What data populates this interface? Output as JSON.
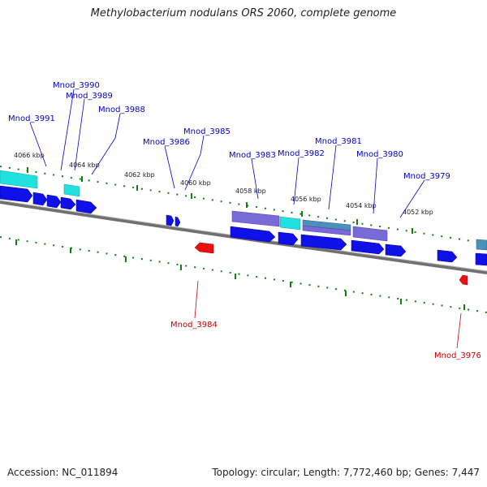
{
  "title": "Methylobacterium nodulans ORS 2060, complete genome",
  "accession": "Accession: NC_011894",
  "summary": "Topology: circular; Length: 7,772,460 bp; Genes: 7,447",
  "colors": {
    "forward_gene": "#1010e8",
    "reverse_gene": "#e81010",
    "cyan_feature": "#20e0e0",
    "purple_feature": "#7a6ad8",
    "teal_feature": "#4a90b8",
    "backbone": "#808080",
    "tick": "#108010",
    "forward_label": "#0000cc",
    "reverse_label": "#cc0000"
  },
  "diagram": {
    "kbp_ticks": [
      "4066 kbp",
      "4064 kbp",
      "4062 kbp",
      "4060 kbp",
      "4058 kbp",
      "4056 kbp",
      "4054 kbp",
      "4052 kbp"
    ],
    "forward_labels": [
      "Mnod_3991",
      "Mnod_3990",
      "Mnod_3989",
      "Mnod_3988",
      "Mnod_3986",
      "Mnod_3985",
      "Mnod_3983",
      "Mnod_3982",
      "Mnod_3981",
      "Mnod_3980",
      "Mnod_3979"
    ],
    "reverse_labels": [
      "Mnod_3984",
      "Mnod_3976"
    ]
  }
}
